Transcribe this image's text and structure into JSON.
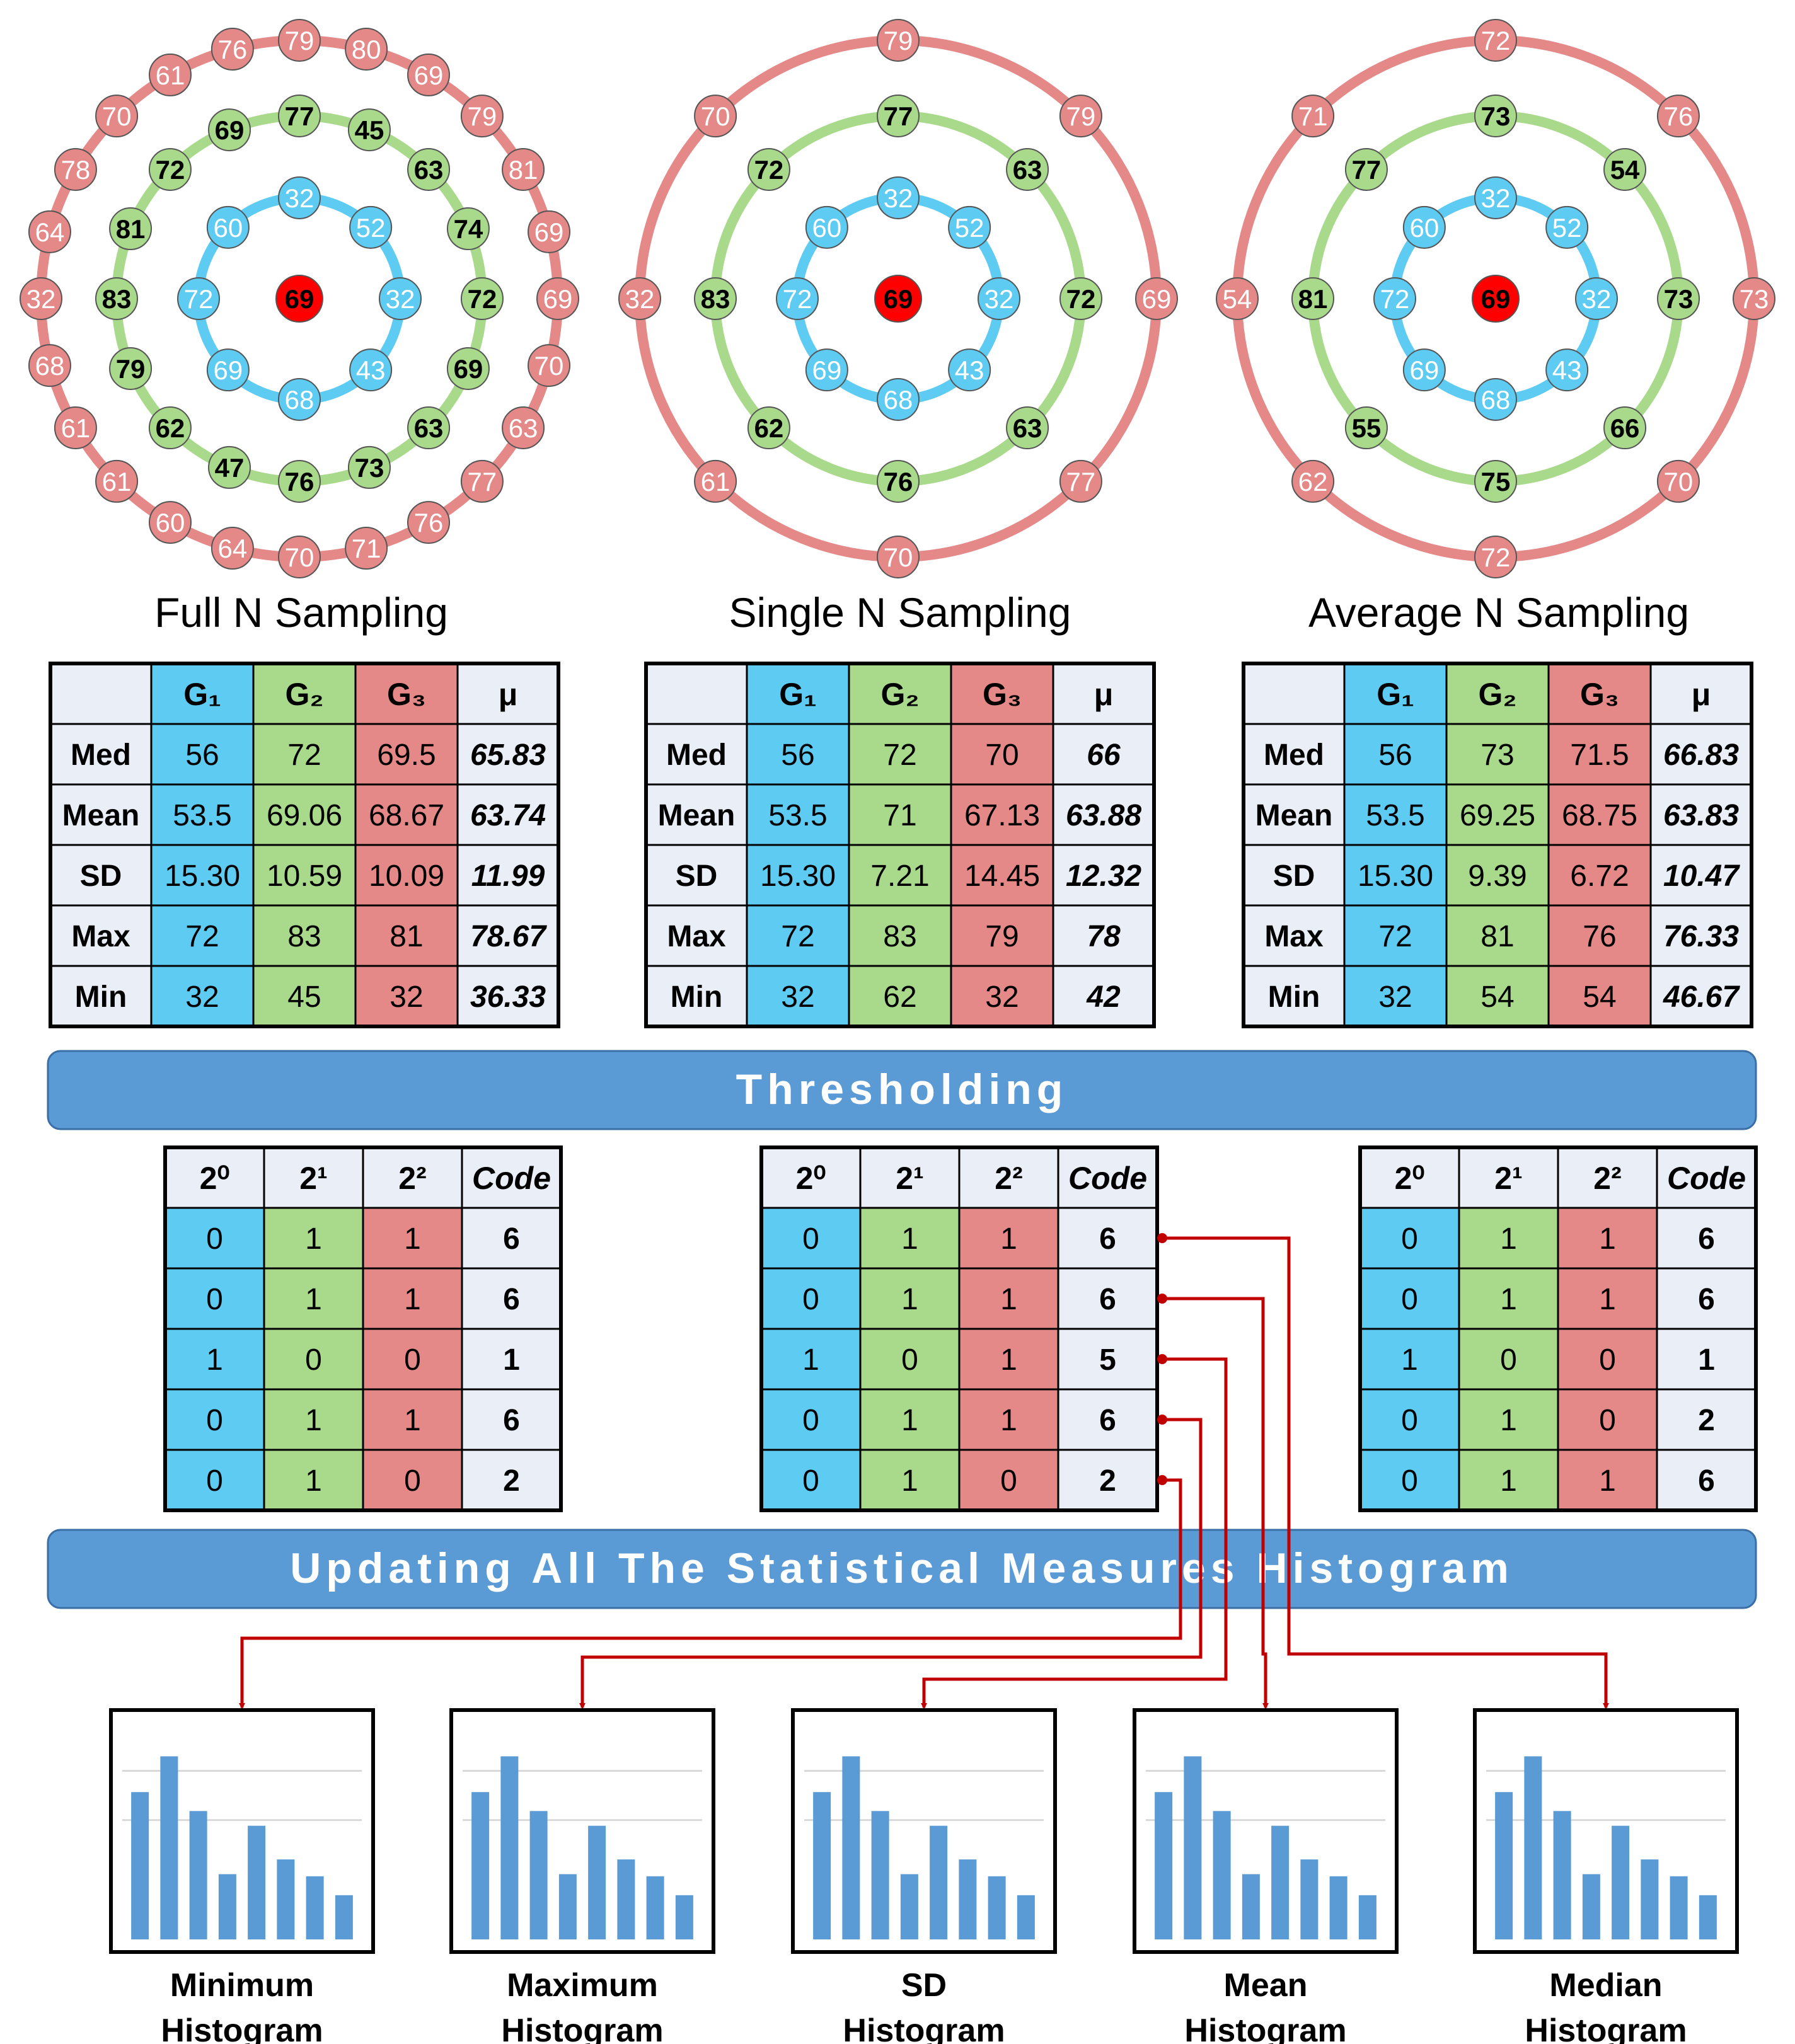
{
  "colors": {
    "blue_ring": "#5ecbf2",
    "green_ring": "#a9d98a",
    "red_ring": "#e48888",
    "center": "#ff0000",
    "mu_cell": "#eaeef6",
    "bar_blue": "#5b9bd5",
    "banner": "#5b9bd5",
    "arrow": "#c00000"
  },
  "rings": [
    {
      "id": "full",
      "title": "Full N Sampling",
      "center": "69",
      "g1": [
        "32",
        "52",
        "32",
        "43",
        "68",
        "69",
        "72",
        "60"
      ],
      "g2": [
        "77",
        "45",
        "63",
        "74",
        "72",
        "69",
        "63",
        "73",
        "76",
        "47",
        "62",
        "79",
        "83",
        "81",
        "72",
        "69"
      ],
      "g3": [
        "79",
        "80",
        "69",
        "79",
        "81",
        "69",
        "69",
        "70",
        "63",
        "77",
        "76",
        "71",
        "70",
        "64",
        "60",
        "61",
        "61",
        "68",
        "32",
        "64",
        "78",
        "70",
        "61",
        "76"
      ]
    },
    {
      "id": "single",
      "title": "Single N Sampling",
      "center": "69",
      "g1": [
        "32",
        "52",
        "32",
        "43",
        "68",
        "69",
        "72",
        "60"
      ],
      "g2": [
        "77",
        "63",
        "72",
        "63",
        "76",
        "62",
        "83",
        "72"
      ],
      "g3": [
        "79",
        "79",
        "69",
        "77",
        "70",
        "61",
        "32",
        "70"
      ]
    },
    {
      "id": "average",
      "title": "Average N Sampling",
      "center": "69",
      "g1": [
        "32",
        "52",
        "32",
        "43",
        "68",
        "69",
        "72",
        "60"
      ],
      "g2": [
        "73",
        "54",
        "73",
        "66",
        "75",
        "55",
        "81",
        "77"
      ],
      "g3": [
        "72",
        "76",
        "73",
        "70",
        "72",
        "62",
        "54",
        "71"
      ]
    }
  ],
  "stat_tables": {
    "headers": [
      "G₁",
      "G₂",
      "G₃",
      "μ"
    ],
    "tables": [
      {
        "rows": [
          {
            "label": "Med",
            "g1": "56",
            "g2": "72",
            "g3": "69.5",
            "mu": "65.83"
          },
          {
            "label": "Mean",
            "g1": "53.5",
            "g2": "69.06",
            "g3": "68.67",
            "mu": "63.74"
          },
          {
            "label": "SD",
            "g1": "15.30",
            "g2": "10.59",
            "g3": "10.09",
            "mu": "11.99"
          },
          {
            "label": "Max",
            "g1": "72",
            "g2": "83",
            "g3": "81",
            "mu": "78.67"
          },
          {
            "label": "Min",
            "g1": "32",
            "g2": "45",
            "g3": "32",
            "mu": "36.33"
          }
        ]
      },
      {
        "rows": [
          {
            "label": "Med",
            "g1": "56",
            "g2": "72",
            "g3": "70",
            "mu": "66"
          },
          {
            "label": "Mean",
            "g1": "53.5",
            "g2": "71",
            "g3": "67.13",
            "mu": "63.88"
          },
          {
            "label": "SD",
            "g1": "15.30",
            "g2": "7.21",
            "g3": "14.45",
            "mu": "12.32"
          },
          {
            "label": "Max",
            "g1": "72",
            "g2": "83",
            "g3": "79",
            "mu": "78"
          },
          {
            "label": "Min",
            "g1": "32",
            "g2": "62",
            "g3": "32",
            "mu": "42"
          }
        ]
      },
      {
        "rows": [
          {
            "label": "Med",
            "g1": "56",
            "g2": "73",
            "g3": "71.5",
            "mu": "66.83"
          },
          {
            "label": "Mean",
            "g1": "53.5",
            "g2": "69.25",
            "g3": "68.75",
            "mu": "63.83"
          },
          {
            "label": "SD",
            "g1": "15.30",
            "g2": "9.39",
            "g3": "6.72",
            "mu": "10.47"
          },
          {
            "label": "Max",
            "g1": "72",
            "g2": "81",
            "g3": "76",
            "mu": "76.33"
          },
          {
            "label": "Min",
            "g1": "32",
            "g2": "54",
            "g3": "54",
            "mu": "46.67"
          }
        ]
      }
    ]
  },
  "banners": {
    "thresholding": "Thresholding",
    "updating": "Updating All The Statistical Measures Histogram"
  },
  "code_tables": {
    "headers": [
      "2⁰",
      "2¹",
      "2²",
      "Code"
    ],
    "tables": [
      {
        "rows": [
          [
            "0",
            "1",
            "1",
            "6"
          ],
          [
            "0",
            "1",
            "1",
            "6"
          ],
          [
            "1",
            "0",
            "0",
            "1"
          ],
          [
            "0",
            "1",
            "1",
            "6"
          ],
          [
            "0",
            "1",
            "0",
            "2"
          ]
        ]
      },
      {
        "rows": [
          [
            "0",
            "1",
            "1",
            "6"
          ],
          [
            "0",
            "1",
            "1",
            "6"
          ],
          [
            "1",
            "0",
            "1",
            "5"
          ],
          [
            "0",
            "1",
            "1",
            "6"
          ],
          [
            "0",
            "1",
            "0",
            "2"
          ]
        ]
      },
      {
        "rows": [
          [
            "0",
            "1",
            "1",
            "6"
          ],
          [
            "0",
            "1",
            "1",
            "6"
          ],
          [
            "1",
            "0",
            "0",
            "1"
          ],
          [
            "0",
            "1",
            "0",
            "2"
          ],
          [
            "0",
            "1",
            "1",
            "6"
          ]
        ]
      }
    ]
  },
  "histograms": {
    "bar_values": [
      0.7,
      0.87,
      0.61,
      0.31,
      0.54,
      0.38,
      0.3,
      0.21
    ],
    "labels": [
      [
        "Minimum",
        "Histogram"
      ],
      [
        "Maximum",
        "Histogram"
      ],
      [
        "SD",
        "Histogram"
      ],
      [
        "Mean",
        "Histogram"
      ],
      [
        "Median",
        "Histogram"
      ]
    ]
  }
}
